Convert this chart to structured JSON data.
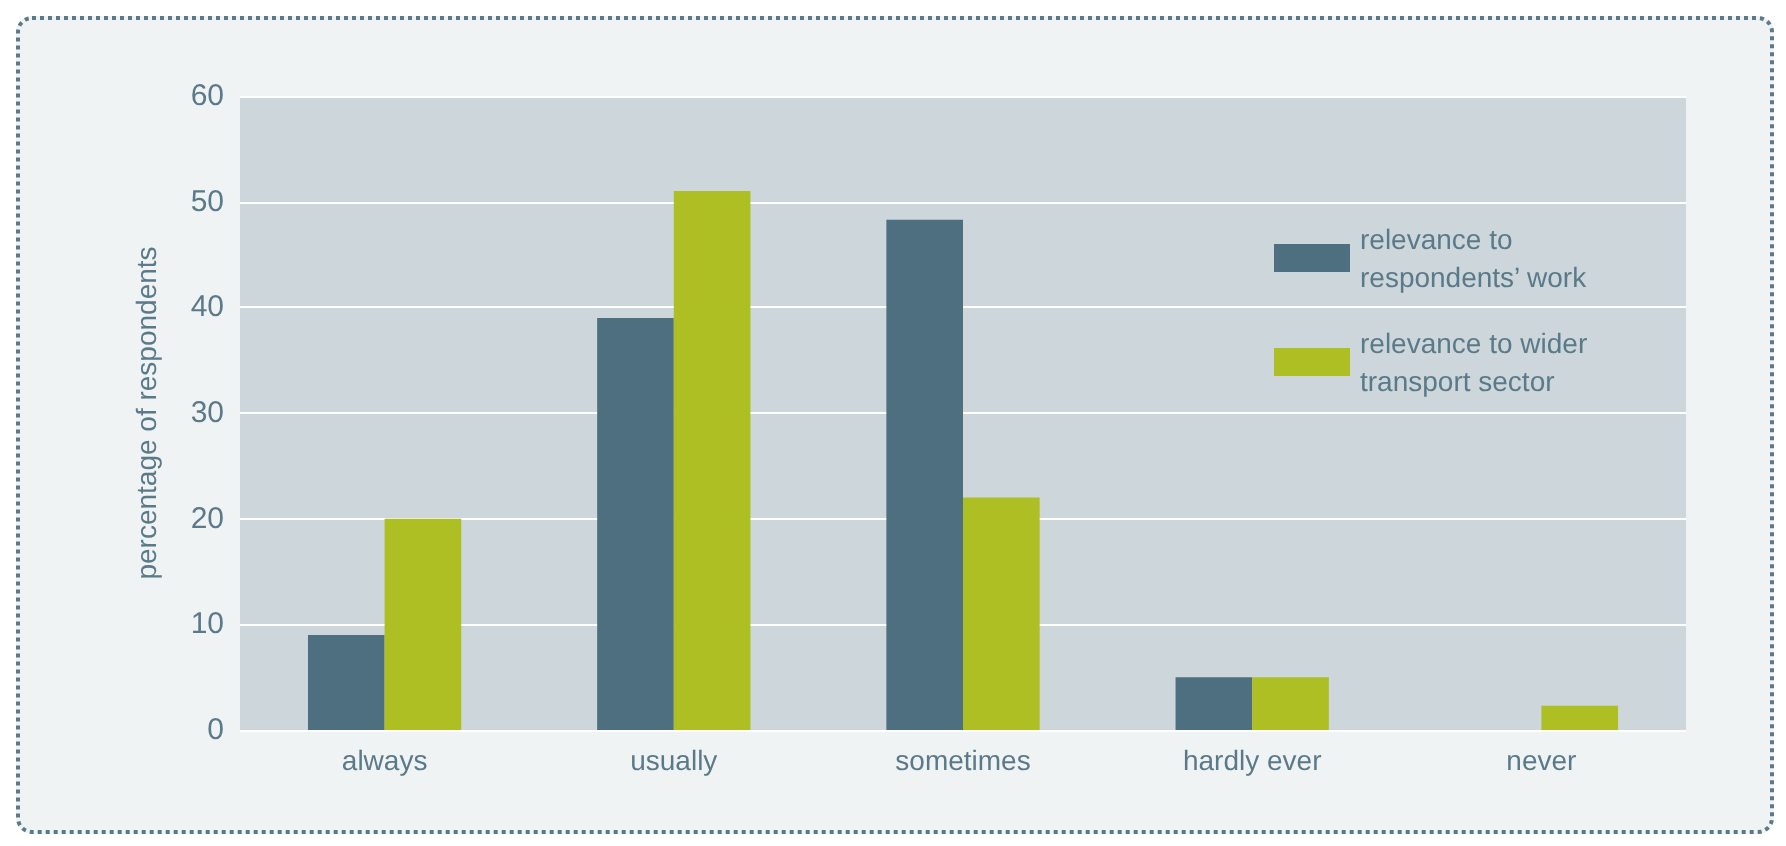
{
  "chart_data": {
    "type": "bar",
    "ylabel": "percentage of respondents",
    "categories": [
      "always",
      "usually",
      "sometimes",
      "hardly ever",
      "never"
    ],
    "series": [
      {
        "name": "relevance to respondents’ work",
        "color": "#4d6f80",
        "values": [
          9,
          39,
          48.3,
          5,
          0
        ]
      },
      {
        "name": "relevance to wider transport sector",
        "color": "#adbf23",
        "values": [
          20,
          51,
          22,
          5,
          2.3
        ]
      }
    ],
    "ylim": [
      0,
      60
    ],
    "yticks": [
      0,
      10,
      20,
      30,
      40,
      50,
      60
    ],
    "grid": "y",
    "legend": "top right"
  }
}
